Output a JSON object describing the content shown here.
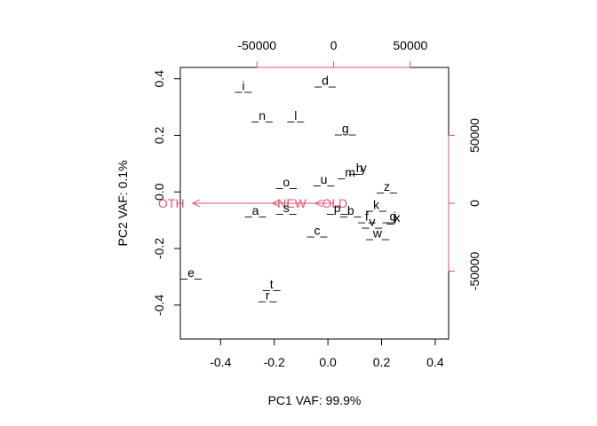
{
  "chart_data": {
    "type": "scatter",
    "subtype": "pca-biplot",
    "xlabel": "PC1 VAF: 99.9%",
    "ylabel": "PC2 VAF: 0.1%",
    "xlim": [
      -0.55,
      0.45
    ],
    "ylim": [
      -0.52,
      0.44
    ],
    "x_ticks": [
      -0.4,
      -0.2,
      0.0,
      0.2,
      0.4
    ],
    "x_tick_labels": [
      "-0.4",
      "-0.2",
      "0.0",
      "0.2",
      "0.4"
    ],
    "y_ticks": [
      -0.4,
      -0.2,
      0.0,
      0.2,
      0.4
    ],
    "y_tick_labels": [
      "-0.4",
      "-0.2",
      "0.0",
      "0.2",
      "0.4"
    ],
    "loading_axis_color": "#DF536B",
    "loading_xlim": [
      -100000,
      75000
    ],
    "loading_ylim": [
      -100000,
      100000
    ],
    "top_ticks": [
      -50000,
      0,
      50000
    ],
    "top_tick_labels": [
      "-50000",
      "0",
      "50000"
    ],
    "right_ticks": [
      -50000,
      0,
      50000
    ],
    "right_tick_labels": [
      "-50000",
      "0",
      "50000"
    ],
    "grid": false,
    "points": [
      {
        "label": "_i_",
        "x": -0.315,
        "y": 0.375
      },
      {
        "label": "_d_",
        "x": -0.01,
        "y": 0.395
      },
      {
        "label": "_n_",
        "x": -0.245,
        "y": 0.27
      },
      {
        "label": "_l_",
        "x": -0.12,
        "y": 0.27
      },
      {
        "label": "_g_",
        "x": 0.065,
        "y": 0.225
      },
      {
        "label": "_h",
        "x": 0.105,
        "y": 0.085
      },
      {
        "label": "_y",
        "x": 0.12,
        "y": 0.085
      },
      {
        "label": "_m",
        "x": 0.07,
        "y": 0.07
      },
      {
        "label": "_o_",
        "x": -0.155,
        "y": 0.035
      },
      {
        "label": "_u_",
        "x": -0.015,
        "y": 0.045
      },
      {
        "label": "_z_",
        "x": 0.22,
        "y": 0.02
      },
      {
        "label": "_a_",
        "x": -0.27,
        "y": -0.065
      },
      {
        "label": "_s_",
        "x": -0.155,
        "y": -0.055
      },
      {
        "label": "_p_",
        "x": 0.035,
        "y": -0.055
      },
      {
        "label": "_b_",
        "x": 0.085,
        "y": -0.065
      },
      {
        "label": "_k_",
        "x": 0.18,
        "y": -0.045
      },
      {
        "label": "_f_",
        "x": 0.145,
        "y": -0.085
      },
      {
        "label": "_v_",
        "x": 0.165,
        "y": -0.105
      },
      {
        "label": "_q",
        "x": 0.23,
        "y": -0.085
      },
      {
        "label": "_j",
        "x": 0.235,
        "y": -0.085
      },
      {
        "label": "_x",
        "x": 0.245,
        "y": -0.09
      },
      {
        "label": "_c_",
        "x": -0.04,
        "y": -0.135
      },
      {
        "label": "_w_",
        "x": 0.185,
        "y": -0.145
      },
      {
        "label": "_e_",
        "x": -0.51,
        "y": -0.285
      },
      {
        "label": "_t_",
        "x": -0.21,
        "y": -0.325
      },
      {
        "label": "_r_",
        "x": -0.225,
        "y": -0.365
      }
    ],
    "loadings": [
      {
        "label": "OTH",
        "x": -92000,
        "y": 0
      },
      {
        "label": "NEW",
        "x": -40000,
        "y": 0
      },
      {
        "label": "OLD",
        "x": -12000,
        "y": 0
      }
    ]
  }
}
